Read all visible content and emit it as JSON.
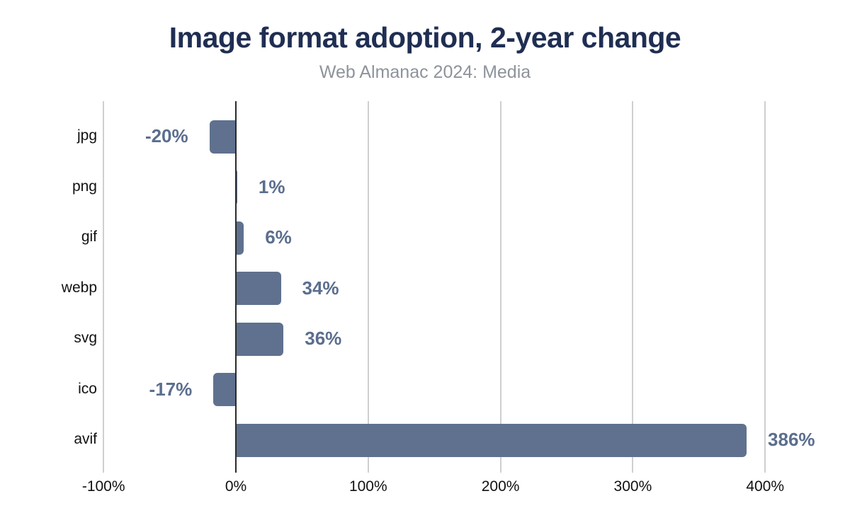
{
  "chart_data": {
    "type": "bar",
    "orientation": "horizontal",
    "title": "Image format adoption, 2-year change",
    "subtitle": "Web Almanac 2024: Media",
    "categories": [
      "jpg",
      "png",
      "gif",
      "webp",
      "svg",
      "ico",
      "avif"
    ],
    "values": [
      -20,
      1,
      6,
      34,
      36,
      -17,
      386
    ],
    "value_labels": [
      "-20%",
      "1%",
      "6%",
      "34%",
      "36%",
      "-17%",
      "386%"
    ],
    "xticks": [
      -100,
      0,
      100,
      200,
      300,
      400
    ],
    "xtick_labels": [
      "-100%",
      "0%",
      "100%",
      "200%",
      "300%",
      "400%"
    ],
    "xlim": [
      -100,
      400
    ],
    "unit": "%",
    "grid": true,
    "legend": false,
    "colors": {
      "bar": "#5f718e",
      "value_label": "#5b6e8e",
      "title": "#1f2e52",
      "subtitle": "#8e939b",
      "axis_label": "#111111",
      "category_label": "#121212",
      "gridline": "#cfcfcf",
      "zero_line": "#2b2b2b"
    }
  }
}
